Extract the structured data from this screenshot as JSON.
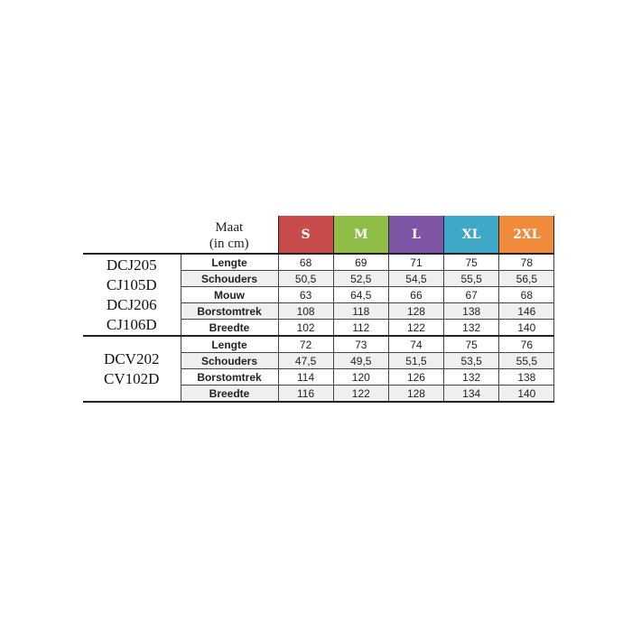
{
  "header": {
    "maat_line1": "Maat",
    "maat_line2": "(in cm)",
    "sizes": [
      {
        "label": "S",
        "color": "#c84b4b"
      },
      {
        "label": "M",
        "color": "#8fbd48"
      },
      {
        "label": "L",
        "color": "#7f56a6"
      },
      {
        "label": "XL",
        "color": "#3fa8c8"
      },
      {
        "label": "2XL",
        "color": "#f08b3c"
      }
    ]
  },
  "groups": [
    {
      "products": [
        "DCJ205",
        "CJ105D",
        "DCJ206",
        "CJ106D"
      ],
      "rows": [
        {
          "label": "Lengte",
          "values": [
            "68",
            "69",
            "71",
            "75",
            "78"
          ]
        },
        {
          "label": "Schouders",
          "values": [
            "50,5",
            "52,5",
            "54,5",
            "55,5",
            "56,5"
          ]
        },
        {
          "label": "Mouw",
          "values": [
            "63",
            "64,5",
            "66",
            "67",
            "68"
          ]
        },
        {
          "label": "Borstomtrek",
          "values": [
            "108",
            "118",
            "128",
            "138",
            "146"
          ]
        },
        {
          "label": "Breedte",
          "values": [
            "102",
            "112",
            "122",
            "132",
            "140"
          ]
        }
      ]
    },
    {
      "products": [
        "DCV202",
        "CV102D"
      ],
      "rows": [
        {
          "label": "Lengte",
          "values": [
            "72",
            "73",
            "74",
            "75",
            "76"
          ]
        },
        {
          "label": "Schouders",
          "values": [
            "47,5",
            "49,5",
            "51,5",
            "53,5",
            "55,5"
          ]
        },
        {
          "label": "Borstomtrek",
          "values": [
            "114",
            "120",
            "126",
            "132",
            "138"
          ]
        },
        {
          "label": "Breedte",
          "values": [
            "116",
            "122",
            "128",
            "134",
            "140"
          ]
        }
      ]
    }
  ]
}
